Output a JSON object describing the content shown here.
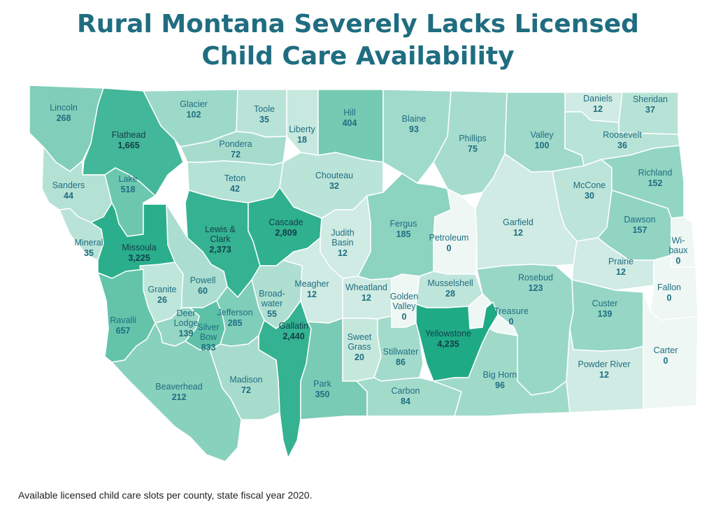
{
  "title": {
    "line1": "Rural Montana Severely Lacks Licensed",
    "line2": "Child Care Availability"
  },
  "caption": "Available licensed child care slots per county, state fiscal year 2020.",
  "colors": {
    "title": "#1f6d80",
    "scale_low": "#eef7f3",
    "scale_high": "#1faa86",
    "label": "#1f6d80"
  },
  "counties": [
    {
      "name": "Lincoln",
      "value": "268"
    },
    {
      "name": "Glacier",
      "value": "102"
    },
    {
      "name": "Toole",
      "value": "35"
    },
    {
      "name": "Liberty",
      "value": "18"
    },
    {
      "name": "Hill",
      "value": "404"
    },
    {
      "name": "Blaine",
      "value": "93"
    },
    {
      "name": "Daniels",
      "value": "12"
    },
    {
      "name": "Sheridan",
      "value": "37"
    },
    {
      "name": "Flathead",
      "value": "1,665"
    },
    {
      "name": "Pondera",
      "value": "72"
    },
    {
      "name": "Phillips",
      "value": "75"
    },
    {
      "name": "Valley",
      "value": "100"
    },
    {
      "name": "Roosevelt",
      "value": "36"
    },
    {
      "name": "Sanders",
      "value": "44"
    },
    {
      "name": "Lake",
      "value": "518"
    },
    {
      "name": "Teton",
      "value": "42"
    },
    {
      "name": "Chouteau",
      "value": "32"
    },
    {
      "name": "McCone",
      "value": "30"
    },
    {
      "name": "Richland",
      "value": "152"
    },
    {
      "name": "Mineral",
      "value": "35"
    },
    {
      "name": "Missoula",
      "value": "3,225"
    },
    {
      "name": "Lewis & Clark",
      "value": "2,373"
    },
    {
      "name": "Cascade",
      "value": "2,809"
    },
    {
      "name": "Judith Basin",
      "value": "12"
    },
    {
      "name": "Fergus",
      "value": "185"
    },
    {
      "name": "Petroleum",
      "value": "0"
    },
    {
      "name": "Garfield",
      "value": "12"
    },
    {
      "name": "Dawson",
      "value": "157"
    },
    {
      "name": "Wibaux",
      "value": "0"
    },
    {
      "name": "Prairie",
      "value": "12"
    },
    {
      "name": "Granite",
      "value": "26"
    },
    {
      "name": "Powell",
      "value": "60"
    },
    {
      "name": "Broadwater",
      "value": "55"
    },
    {
      "name": "Meagher",
      "value": "12"
    },
    {
      "name": "Wheatland",
      "value": "12"
    },
    {
      "name": "Golden Valley",
      "value": "0"
    },
    {
      "name": "Musselshell",
      "value": "28"
    },
    {
      "name": "Rosebud",
      "value": "123"
    },
    {
      "name": "Fallon",
      "value": "0"
    },
    {
      "name": "Ravalli",
      "value": "657"
    },
    {
      "name": "Deer Lodge",
      "value": "139"
    },
    {
      "name": "Silver Bow",
      "value": "833"
    },
    {
      "name": "Jefferson",
      "value": "285"
    },
    {
      "name": "Treasure",
      "value": "0"
    },
    {
      "name": "Custer",
      "value": "139"
    },
    {
      "name": "Gallatin",
      "value": "2,440"
    },
    {
      "name": "Sweet Grass",
      "value": "20"
    },
    {
      "name": "Stillwater",
      "value": "86"
    },
    {
      "name": "Yellowstone",
      "value": "4,235"
    },
    {
      "name": "Carter",
      "value": "0"
    },
    {
      "name": "Beaverhead",
      "value": "212"
    },
    {
      "name": "Madison",
      "value": "72"
    },
    {
      "name": "Park",
      "value": "350"
    },
    {
      "name": "Carbon",
      "value": "84"
    },
    {
      "name": "Big Horn",
      "value": "96"
    },
    {
      "name": "Powder River",
      "value": "12"
    }
  ]
}
